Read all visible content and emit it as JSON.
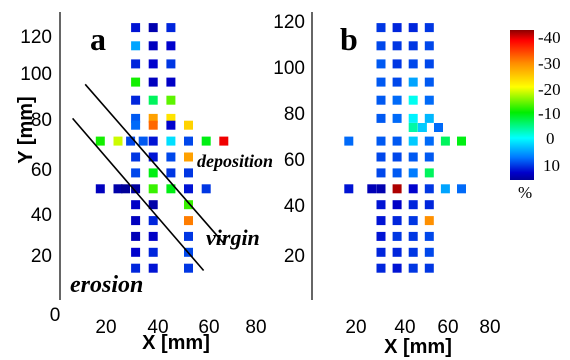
{
  "chart_data": [
    {
      "type": "heatmap",
      "panel_label": "a",
      "xlabel": "X  [mm]",
      "ylabel": "Y  [mm]",
      "xlim": [
        0,
        80
      ],
      "ylim": [
        0,
        130
      ],
      "xticks": [
        "0",
        "20",
        "40",
        "60",
        "80"
      ],
      "yticks": [
        "20",
        "40",
        "60",
        "80",
        "100",
        "120"
      ],
      "annotations": [
        "deposition",
        "virgin",
        "erosion"
      ],
      "boundary_lines": [
        {
          "x": [
            10,
            65
          ],
          "y": [
            95,
            25
          ]
        },
        {
          "x": [
            5,
            57
          ],
          "y": [
            80,
            13
          ]
        }
      ],
      "cells": [
        {
          "x": 30,
          "y": 120,
          "v": 5
        },
        {
          "x": 37,
          "y": 120,
          "v": 10
        },
        {
          "x": 44,
          "y": 120,
          "v": 4
        },
        {
          "x": 30,
          "y": 112,
          "v": -3
        },
        {
          "x": 37,
          "y": 112,
          "v": 8
        },
        {
          "x": 44,
          "y": 112,
          "v": 6
        },
        {
          "x": 30,
          "y": 104,
          "v": 4
        },
        {
          "x": 37,
          "y": 104,
          "v": 6
        },
        {
          "x": 44,
          "y": 104,
          "v": 3
        },
        {
          "x": 30,
          "y": 96,
          "v": -15
        },
        {
          "x": 37,
          "y": 96,
          "v": 8
        },
        {
          "x": 44,
          "y": 96,
          "v": 7
        },
        {
          "x": 30,
          "y": 88,
          "v": 4
        },
        {
          "x": 37,
          "y": 88,
          "v": -12
        },
        {
          "x": 44,
          "y": 88,
          "v": -17
        },
        {
          "x": 30,
          "y": 80,
          "v": 1
        },
        {
          "x": 37,
          "y": 80,
          "v": -27
        },
        {
          "x": 44,
          "y": 80,
          "v": -23
        },
        {
          "x": 30,
          "y": 77,
          "v": 0
        },
        {
          "x": 37,
          "y": 77,
          "v": -30
        },
        {
          "x": 44,
          "y": 77,
          "v": 6
        },
        {
          "x": 51,
          "y": 77,
          "v": -24
        },
        {
          "x": 16,
          "y": 70,
          "v": -15
        },
        {
          "x": 23,
          "y": 70,
          "v": -20
        },
        {
          "x": 28,
          "y": 70,
          "v": 2
        },
        {
          "x": 33,
          "y": 70,
          "v": 1
        },
        {
          "x": 37,
          "y": 70,
          "v": 5
        },
        {
          "x": 44,
          "y": 70,
          "v": -6
        },
        {
          "x": 51,
          "y": 70,
          "v": 2
        },
        {
          "x": 58,
          "y": 70,
          "v": -14
        },
        {
          "x": 65,
          "y": 70,
          "v": -36
        },
        {
          "x": 30,
          "y": 63,
          "v": 3
        },
        {
          "x": 37,
          "y": 63,
          "v": 5
        },
        {
          "x": 44,
          "y": 63,
          "v": 2
        },
        {
          "x": 51,
          "y": 63,
          "v": -27
        },
        {
          "x": 30,
          "y": 56,
          "v": 2
        },
        {
          "x": 37,
          "y": 56,
          "v": -14
        },
        {
          "x": 44,
          "y": 56,
          "v": 3
        },
        {
          "x": 51,
          "y": 56,
          "v": 3
        },
        {
          "x": 16,
          "y": 49,
          "v": 8
        },
        {
          "x": 23,
          "y": 49,
          "v": 11
        },
        {
          "x": 26,
          "y": 49,
          "v": 13
        },
        {
          "x": 30,
          "y": 49,
          "v": 12
        },
        {
          "x": 37,
          "y": 49,
          "v": -16
        },
        {
          "x": 44,
          "y": 49,
          "v": -14
        },
        {
          "x": 51,
          "y": 49,
          "v": 5
        },
        {
          "x": 58,
          "y": 49,
          "v": 3
        },
        {
          "x": 30,
          "y": 42,
          "v": 7
        },
        {
          "x": 37,
          "y": 42,
          "v": 11
        },
        {
          "x": 51,
          "y": 42,
          "v": -16
        },
        {
          "x": 30,
          "y": 35,
          "v": 8
        },
        {
          "x": 37,
          "y": 35,
          "v": 4
        },
        {
          "x": 51,
          "y": 35,
          "v": -29
        },
        {
          "x": 30,
          "y": 28,
          "v": 9
        },
        {
          "x": 37,
          "y": 28,
          "v": 7
        },
        {
          "x": 51,
          "y": 28,
          "v": 3
        },
        {
          "x": 30,
          "y": 21,
          "v": 6
        },
        {
          "x": 37,
          "y": 21,
          "v": 4
        },
        {
          "x": 51,
          "y": 21,
          "v": 2
        },
        {
          "x": 30,
          "y": 14,
          "v": 4
        },
        {
          "x": 37,
          "y": 14,
          "v": 5
        },
        {
          "x": 51,
          "y": 14,
          "v": 3
        }
      ]
    },
    {
      "type": "heatmap",
      "panel_label": "b",
      "xlabel": "X  [mm]",
      "ylabel": "",
      "xlim": [
        0,
        80
      ],
      "ylim": [
        0,
        130
      ],
      "xticks": [
        "20",
        "40",
        "60",
        "80"
      ],
      "yticks": [
        "20",
        "40",
        "60",
        "80",
        "100",
        "120"
      ],
      "cells": [
        {
          "x": 30,
          "y": 120,
          "v": 3
        },
        {
          "x": 37,
          "y": 120,
          "v": 4
        },
        {
          "x": 44,
          "y": 120,
          "v": 4
        },
        {
          "x": 51,
          "y": 120,
          "v": 3
        },
        {
          "x": 30,
          "y": 112,
          "v": 2
        },
        {
          "x": 37,
          "y": 112,
          "v": 3
        },
        {
          "x": 44,
          "y": 112,
          "v": 3
        },
        {
          "x": 51,
          "y": 112,
          "v": 2
        },
        {
          "x": 30,
          "y": 104,
          "v": 1
        },
        {
          "x": 37,
          "y": 104,
          "v": 3
        },
        {
          "x": 44,
          "y": 104,
          "v": 2
        },
        {
          "x": 51,
          "y": 104,
          "v": 2
        },
        {
          "x": 30,
          "y": 96,
          "v": 1
        },
        {
          "x": 37,
          "y": 96,
          "v": 2
        },
        {
          "x": 44,
          "y": 96,
          "v": -3
        },
        {
          "x": 51,
          "y": 96,
          "v": 1
        },
        {
          "x": 30,
          "y": 88,
          "v": 1
        },
        {
          "x": 37,
          "y": 88,
          "v": 0
        },
        {
          "x": 44,
          "y": 88,
          "v": -8
        },
        {
          "x": 51,
          "y": 88,
          "v": 0
        },
        {
          "x": 30,
          "y": 80,
          "v": 1
        },
        {
          "x": 37,
          "y": 80,
          "v": 0
        },
        {
          "x": 44,
          "y": 80,
          "v": -7
        },
        {
          "x": 51,
          "y": 80,
          "v": -4
        },
        {
          "x": 44,
          "y": 76,
          "v": -10
        },
        {
          "x": 48,
          "y": 76,
          "v": -5
        },
        {
          "x": 55,
          "y": 76,
          "v": 0
        },
        {
          "x": 16,
          "y": 70,
          "v": 0
        },
        {
          "x": 30,
          "y": 70,
          "v": 1
        },
        {
          "x": 37,
          "y": 70,
          "v": 1
        },
        {
          "x": 44,
          "y": 70,
          "v": -5
        },
        {
          "x": 51,
          "y": 70,
          "v": 0
        },
        {
          "x": 58,
          "y": 70,
          "v": -12
        },
        {
          "x": 65,
          "y": 70,
          "v": -14
        },
        {
          "x": 30,
          "y": 63,
          "v": 2
        },
        {
          "x": 37,
          "y": 63,
          "v": 2
        },
        {
          "x": 44,
          "y": 63,
          "v": 1
        },
        {
          "x": 51,
          "y": 63,
          "v": 1
        },
        {
          "x": 30,
          "y": 56,
          "v": 2
        },
        {
          "x": 37,
          "y": 56,
          "v": 1
        },
        {
          "x": 44,
          "y": 56,
          "v": -1
        },
        {
          "x": 51,
          "y": 56,
          "v": -12
        },
        {
          "x": 16,
          "y": 49,
          "v": 5
        },
        {
          "x": 26,
          "y": 49,
          "v": 9
        },
        {
          "x": 30,
          "y": 49,
          "v": 10
        },
        {
          "x": 37,
          "y": 49,
          "v": -40
        },
        {
          "x": 44,
          "y": 49,
          "v": 6
        },
        {
          "x": 51,
          "y": 49,
          "v": 3
        },
        {
          "x": 58,
          "y": 49,
          "v": -3
        },
        {
          "x": 65,
          "y": 49,
          "v": 0
        },
        {
          "x": 30,
          "y": 42,
          "v": 5
        },
        {
          "x": 37,
          "y": 42,
          "v": 7
        },
        {
          "x": 44,
          "y": 42,
          "v": 4
        },
        {
          "x": 51,
          "y": 42,
          "v": 4
        },
        {
          "x": 30,
          "y": 35,
          "v": 5
        },
        {
          "x": 37,
          "y": 35,
          "v": 4
        },
        {
          "x": 44,
          "y": 35,
          "v": 3
        },
        {
          "x": 51,
          "y": 35,
          "v": -28
        },
        {
          "x": 30,
          "y": 28,
          "v": 5
        },
        {
          "x": 37,
          "y": 28,
          "v": 3
        },
        {
          "x": 44,
          "y": 28,
          "v": 3
        },
        {
          "x": 51,
          "y": 28,
          "v": 2
        },
        {
          "x": 30,
          "y": 21,
          "v": 4
        },
        {
          "x": 37,
          "y": 21,
          "v": 4
        },
        {
          "x": 44,
          "y": 21,
          "v": 3
        },
        {
          "x": 51,
          "y": 21,
          "v": 2
        },
        {
          "x": 30,
          "y": 14,
          "v": 4
        },
        {
          "x": 37,
          "y": 14,
          "v": 5
        },
        {
          "x": 44,
          "y": 14,
          "v": 3
        },
        {
          "x": 51,
          "y": 14,
          "v": 3
        }
      ]
    }
  ],
  "colorbar": {
    "ticks": [
      "-40",
      "-30",
      "-20",
      "-10",
      "0",
      "10"
    ],
    "unit": "%",
    "range": [
      -42,
      13
    ],
    "stops": [
      "#8b0000",
      "#ff0000",
      "#ff8c00",
      "#ffff00",
      "#00ee00",
      "#00ffff",
      "#0077ff",
      "#0000cc",
      "#000099"
    ]
  }
}
